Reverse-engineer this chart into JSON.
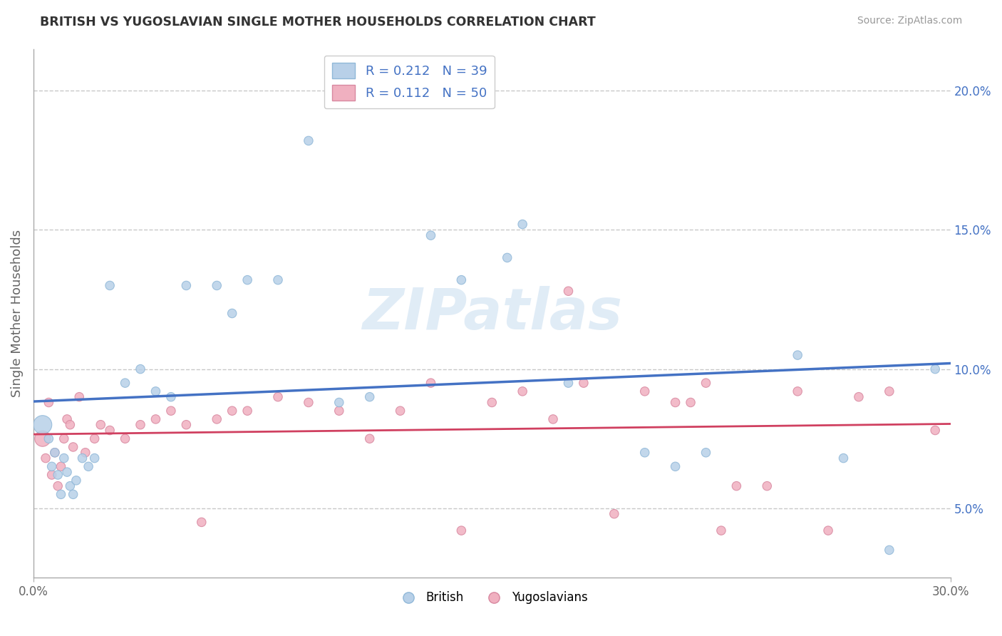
{
  "title": "BRITISH VS YUGOSLAVIAN SINGLE MOTHER HOUSEHOLDS CORRELATION CHART",
  "source": "Source: ZipAtlas.com",
  "ylabel": "Single Mother Households",
  "xlim": [
    0.0,
    0.3
  ],
  "ylim": [
    0.025,
    0.215
  ],
  "y_ticks": [
    0.05,
    0.1,
    0.15,
    0.2
  ],
  "y_tick_labels": [
    "5.0%",
    "10.0%",
    "15.0%",
    "20.0%"
  ],
  "grid_color": "#c8c8c8",
  "background_color": "#ffffff",
  "british_color": "#b8d0e8",
  "british_edge_color": "#90b8d8",
  "yugoslavian_color": "#f0b0c0",
  "yugoslavian_edge_color": "#d888a0",
  "british_line_color": "#4472c4",
  "yugoslavian_line_color": "#d04060",
  "legend_r_british": "0.212",
  "legend_n_british": "39",
  "legend_r_yugoslavian": "0.112",
  "legend_n_yugoslavian": "50",
  "watermark": "ZIPatlas",
  "british_x": [
    0.003,
    0.005,
    0.006,
    0.007,
    0.008,
    0.009,
    0.01,
    0.011,
    0.012,
    0.013,
    0.014,
    0.016,
    0.018,
    0.02,
    0.025,
    0.03,
    0.035,
    0.04,
    0.045,
    0.05,
    0.06,
    0.065,
    0.07,
    0.08,
    0.09,
    0.1,
    0.11,
    0.13,
    0.14,
    0.155,
    0.16,
    0.175,
    0.2,
    0.21,
    0.22,
    0.25,
    0.265,
    0.28,
    0.295
  ],
  "british_y": [
    0.08,
    0.075,
    0.065,
    0.07,
    0.062,
    0.055,
    0.068,
    0.063,
    0.058,
    0.055,
    0.06,
    0.068,
    0.065,
    0.068,
    0.13,
    0.095,
    0.1,
    0.092,
    0.09,
    0.13,
    0.13,
    0.12,
    0.132,
    0.132,
    0.182,
    0.088,
    0.09,
    0.148,
    0.132,
    0.14,
    0.152,
    0.095,
    0.07,
    0.065,
    0.07,
    0.105,
    0.068,
    0.035,
    0.1
  ],
  "british_sizes": [
    350,
    80,
    80,
    80,
    80,
    80,
    80,
    80,
    80,
    80,
    80,
    80,
    80,
    80,
    80,
    80,
    80,
    80,
    80,
    80,
    80,
    80,
    80,
    80,
    80,
    80,
    80,
    80,
    80,
    80,
    80,
    80,
    80,
    80,
    80,
    80,
    80,
    80,
    80
  ],
  "yugoslavian_x": [
    0.003,
    0.004,
    0.005,
    0.006,
    0.007,
    0.008,
    0.009,
    0.01,
    0.011,
    0.012,
    0.013,
    0.015,
    0.017,
    0.02,
    0.022,
    0.025,
    0.03,
    0.035,
    0.04,
    0.045,
    0.05,
    0.055,
    0.06,
    0.065,
    0.07,
    0.08,
    0.09,
    0.1,
    0.11,
    0.12,
    0.13,
    0.14,
    0.15,
    0.16,
    0.17,
    0.175,
    0.18,
    0.19,
    0.2,
    0.21,
    0.215,
    0.22,
    0.225,
    0.23,
    0.24,
    0.25,
    0.26,
    0.27,
    0.28,
    0.295
  ],
  "yugoslavian_y": [
    0.075,
    0.068,
    0.088,
    0.062,
    0.07,
    0.058,
    0.065,
    0.075,
    0.082,
    0.08,
    0.072,
    0.09,
    0.07,
    0.075,
    0.08,
    0.078,
    0.075,
    0.08,
    0.082,
    0.085,
    0.08,
    0.045,
    0.082,
    0.085,
    0.085,
    0.09,
    0.088,
    0.085,
    0.075,
    0.085,
    0.095,
    0.042,
    0.088,
    0.092,
    0.082,
    0.128,
    0.095,
    0.048,
    0.092,
    0.088,
    0.088,
    0.095,
    0.042,
    0.058,
    0.058,
    0.092,
    0.042,
    0.09,
    0.092,
    0.078
  ],
  "yugoslavian_sizes": [
    250,
    80,
    80,
    80,
    80,
    80,
    80,
    80,
    80,
    80,
    80,
    80,
    80,
    80,
    80,
    80,
    80,
    80,
    80,
    80,
    80,
    80,
    80,
    80,
    80,
    80,
    80,
    80,
    80,
    80,
    80,
    80,
    80,
    80,
    80,
    80,
    80,
    80,
    80,
    80,
    80,
    80,
    80,
    80,
    80,
    80,
    80,
    80,
    80,
    80
  ]
}
